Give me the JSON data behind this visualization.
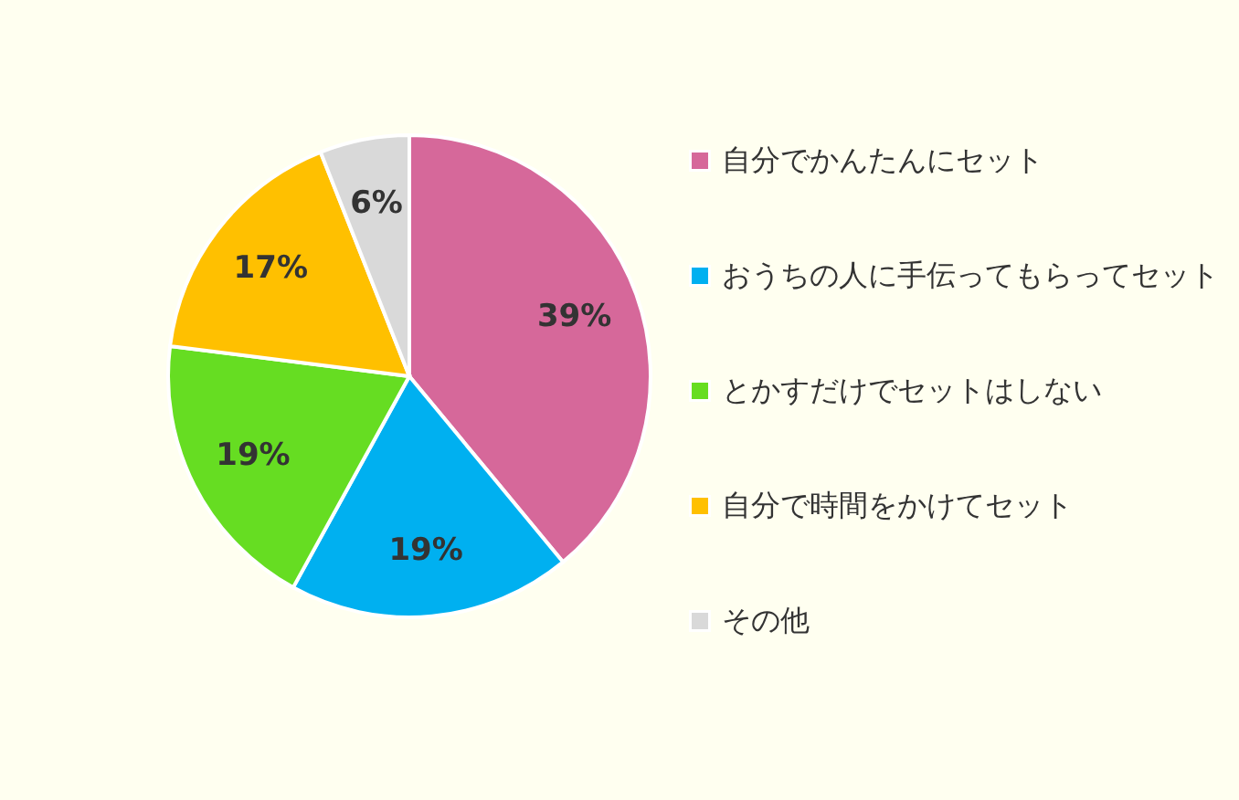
{
  "chart_data": {
    "type": "pie",
    "categories": [
      "自分でかんたんにセット",
      "おうちの人に手伝ってもらってセット",
      "とかすだけでセットはしない",
      "自分で時間をかけてセット",
      "その他"
    ],
    "values": [
      39,
      19,
      19,
      17,
      6
    ],
    "colors": [
      "#d6689a",
      "#00b0f0",
      "#66dd22",
      "#ffc000",
      "#d9d9d9"
    ],
    "value_labels": [
      "39%",
      "19%",
      "19%",
      "17%",
      "6%"
    ],
    "legend": "right"
  }
}
